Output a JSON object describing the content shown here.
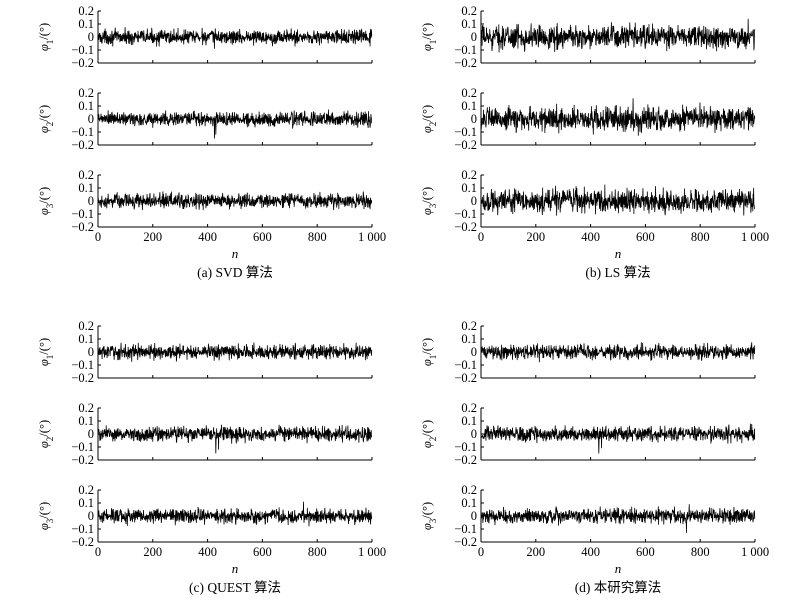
{
  "figure": {
    "panel_captions": [
      "(a) SVD 算法",
      "(b) LS 算法",
      "(c) QUEST 算法",
      "(d) 本研究算法"
    ],
    "xlabel": "n",
    "ylabels": [
      {
        "symbol": "φ",
        "sub": "1",
        "unit": "/(°)"
      },
      {
        "symbol": "φ",
        "sub": "2",
        "unit": "/(°)"
      },
      {
        "symbol": "φ",
        "sub": "3",
        "unit": "/(°)"
      }
    ],
    "x_ticks": [
      0,
      200,
      400,
      600,
      800,
      1000
    ],
    "x_tick_labels": [
      "0",
      "200",
      "400",
      "600",
      "800",
      "1 000"
    ],
    "y_ticks": [
      0.2,
      0.1,
      0,
      -0.1,
      -0.2
    ],
    "y_tick_labels": [
      "0.2",
      "0.1",
      "0",
      "−0.1",
      "−0.2"
    ],
    "line_color": "#000000"
  },
  "chart_data": [
    {
      "type": "line",
      "caption": "(a) SVD 算法",
      "xlabel": "n",
      "xlim": [
        0,
        1000
      ],
      "ylim": [
        -0.2,
        0.2
      ],
      "series": [
        {
          "ylabel": "φ1/(°)",
          "points": 1000,
          "mean": 0.0,
          "amplitude": 0.05,
          "spikes": [
            [
              425,
              -0.09
            ],
            [
              380,
              0.07
            ]
          ]
        },
        {
          "ylabel": "φ2/(°)",
          "points": 1000,
          "mean": 0.0,
          "amplitude": 0.05,
          "spikes": [
            [
              425,
              -0.15
            ],
            [
              430,
              -0.12
            ]
          ]
        },
        {
          "ylabel": "φ3/(°)",
          "points": 1000,
          "mean": 0.0,
          "amplitude": 0.05,
          "spikes": [
            [
              860,
              -0.07
            ],
            [
              810,
              0.07
            ]
          ]
        }
      ]
    },
    {
      "type": "line",
      "caption": "(b) LS 算法",
      "xlabel": "n",
      "xlim": [
        0,
        1000
      ],
      "ylim": [
        -0.2,
        0.2
      ],
      "series": [
        {
          "ylabel": "φ1/(°)",
          "points": 1000,
          "mean": 0.0,
          "amplitude": 0.08,
          "spikes": [
            [
              975,
              0.14
            ],
            [
              860,
              -0.11
            ]
          ]
        },
        {
          "ylabel": "φ2/(°)",
          "points": 1000,
          "mean": 0.0,
          "amplitude": 0.08,
          "spikes": [
            [
              555,
              0.16
            ],
            [
              410,
              -0.12
            ]
          ]
        },
        {
          "ylabel": "φ3/(°)",
          "points": 1000,
          "mean": 0.0,
          "amplitude": 0.08,
          "spikes": [
            [
              985,
              -0.09
            ],
            [
              350,
              0.1
            ]
          ]
        }
      ]
    },
    {
      "type": "line",
      "caption": "(c) QUEST 算法",
      "xlabel": "n",
      "xlim": [
        0,
        1000
      ],
      "ylim": [
        -0.2,
        0.2
      ],
      "series": [
        {
          "ylabel": "φ1/(°)",
          "points": 1000,
          "mean": 0.0,
          "amplitude": 0.05,
          "spikes": [
            [
              80,
              -0.06
            ],
            [
              720,
              0.07
            ]
          ]
        },
        {
          "ylabel": "φ2/(°)",
          "points": 1000,
          "mean": 0.0,
          "amplitude": 0.05,
          "spikes": [
            [
              430,
              -0.15
            ],
            [
              440,
              -0.12
            ]
          ]
        },
        {
          "ylabel": "φ3/(°)",
          "points": 1000,
          "mean": 0.0,
          "amplitude": 0.05,
          "spikes": [
            [
              750,
              0.11
            ],
            [
              770,
              -0.08
            ]
          ]
        }
      ]
    },
    {
      "type": "line",
      "caption": "(d) 本研究算法",
      "xlabel": "n",
      "xlim": [
        0,
        1000
      ],
      "ylim": [
        -0.2,
        0.2
      ],
      "series": [
        {
          "ylabel": "φ1/(°)",
          "points": 1000,
          "mean": 0.0,
          "amplitude": 0.05,
          "spikes": [
            [
              115,
              -0.06
            ],
            [
              590,
              0.07
            ]
          ]
        },
        {
          "ylabel": "φ2/(°)",
          "points": 1000,
          "mean": 0.0,
          "amplitude": 0.05,
          "spikes": [
            [
              430,
              -0.15
            ],
            [
              440,
              -0.11
            ]
          ]
        },
        {
          "ylabel": "φ3/(°)",
          "points": 1000,
          "mean": 0.0,
          "amplitude": 0.05,
          "spikes": [
            [
              750,
              -0.13
            ],
            [
              760,
              0.09
            ]
          ]
        }
      ]
    }
  ]
}
